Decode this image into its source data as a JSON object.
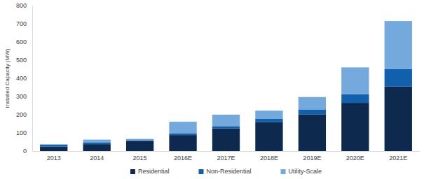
{
  "chart_data": {
    "type": "bar",
    "stacked": true,
    "grid": false,
    "legend": "bottom",
    "y_label": "Installed Capacity (MW)",
    "categories": [
      "2013",
      "2014",
      "2015",
      "2016E",
      "2017E",
      "2018E",
      "2019E",
      "2020E",
      "2021E"
    ],
    "series": [
      {
        "name": "Residential",
        "color": "#0d2a4e",
        "values": [
          25,
          38,
          55,
          88,
          125,
          160,
          202,
          265,
          355
        ]
      },
      {
        "name": "Non-Residential",
        "color": "#1060ad",
        "values": [
          10,
          8,
          5,
          8,
          12,
          17,
          25,
          48,
          97
        ]
      },
      {
        "name": "Utility-Scale",
        "color": "#73a9dc",
        "values": [
          2,
          17,
          7,
          65,
          63,
          45,
          70,
          147,
          263
        ]
      }
    ],
    "ylim": [
      0,
      800
    ],
    "yticks": [
      0,
      100,
      200,
      300,
      400,
      500,
      600,
      700,
      800
    ]
  }
}
